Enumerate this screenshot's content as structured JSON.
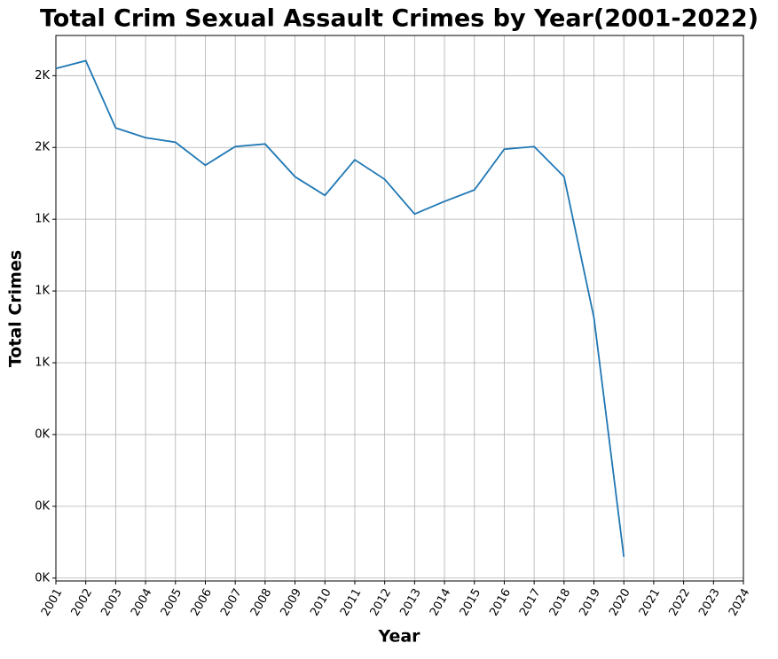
{
  "chart_data": {
    "type": "line",
    "title": "Total Crim Sexual Assault Crimes by Year(2001-2022)",
    "x_label": "Year",
    "y_label": "Total Crimes",
    "x": [
      2001,
      2002,
      2003,
      2004,
      2005,
      2006,
      2007,
      2008,
      2009,
      2010,
      2011,
      2012,
      2013,
      2014,
      2015,
      2016,
      2017,
      2018,
      2019,
      2020
    ],
    "series": [
      {
        "name": "Total Crimes",
        "color": "#1f77b4",
        "values": [
          1775,
          1802,
          1568,
          1534,
          1518,
          1438,
          1503,
          1512,
          1398,
          1333,
          1457,
          1389,
          1268,
          1312,
          1352,
          1494,
          1503,
          1398,
          907,
          74
        ]
      }
    ],
    "xlim": [
      2001,
      2024
    ],
    "xticks": [
      2001,
      2002,
      2003,
      2004,
      2005,
      2006,
      2007,
      2008,
      2009,
      2010,
      2011,
      2012,
      2013,
      2014,
      2015,
      2016,
      2017,
      2018,
      2019,
      2020,
      2021,
      2022,
      2023,
      2024
    ],
    "ylim": [
      -10,
      1890
    ],
    "yticks": [
      {
        "value": 0,
        "label": "0K"
      },
      {
        "value": 250,
        "label": "0K"
      },
      {
        "value": 500,
        "label": "0K"
      },
      {
        "value": 750,
        "label": "1K"
      },
      {
        "value": 1000,
        "label": "1K"
      },
      {
        "value": 1250,
        "label": "1K"
      },
      {
        "value": 1500,
        "label": "2K"
      },
      {
        "value": 1750,
        "label": "2K"
      }
    ],
    "grid": true
  }
}
